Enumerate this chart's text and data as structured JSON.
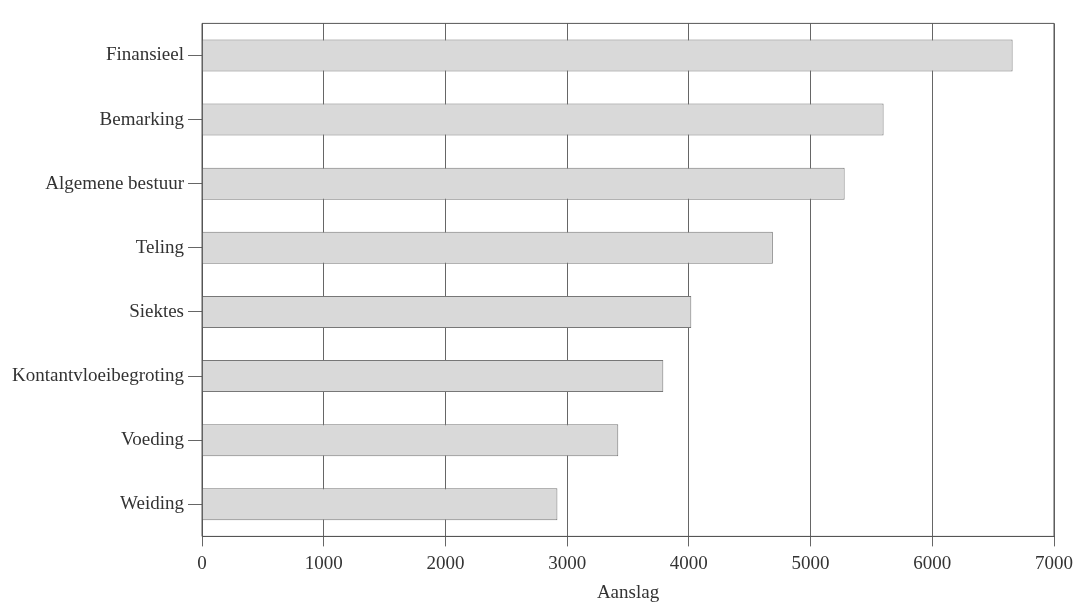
{
  "chart_data": {
    "type": "bar",
    "orientation": "horizontal",
    "xlabel": "Aanslag",
    "categories": [
      "Finansieel",
      "Bemarking",
      "Algemene bestuur",
      "Teling",
      "Siektes",
      "Kontantvloeibegroting",
      "Voeding",
      "Weiding"
    ],
    "values": [
      6660,
      5600,
      5280,
      4690,
      4020,
      3790,
      3420,
      2920
    ],
    "color": "#d9d9d9",
    "xlim": [
      0,
      7000
    ],
    "xticks": [
      0,
      1000,
      2000,
      3000,
      4000,
      5000,
      6000,
      7000
    ],
    "grid": "x",
    "legend": false
  }
}
